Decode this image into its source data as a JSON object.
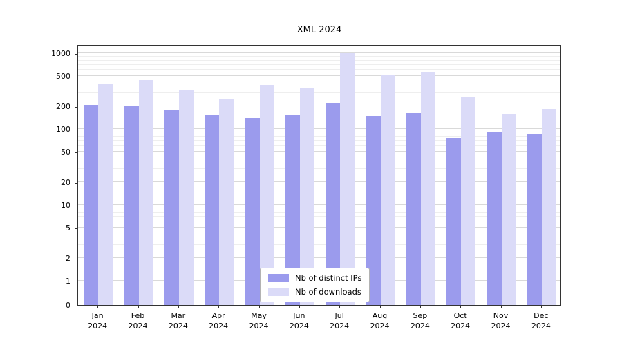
{
  "figure": {
    "title": "XML 2024"
  },
  "chart_data": {
    "type": "bar",
    "title": "XML 2024",
    "categories": [
      "Jan",
      "Feb",
      "Mar",
      "Apr",
      "May",
      "Jun",
      "Jul",
      "Aug",
      "Sep",
      "Oct",
      "Nov",
      "Dec"
    ],
    "year": "2024",
    "series": [
      {
        "name": "Nb of distinct IPs",
        "color": "#9b9bed",
        "values": [
          210,
          200,
          178,
          152,
          140,
          152,
          220,
          150,
          163,
          76,
          90,
          87
        ]
      },
      {
        "name": "Nb of downloads",
        "color": "#dbdbf8",
        "values": [
          390,
          440,
          320,
          250,
          380,
          350,
          1000,
          510,
          570,
          260,
          160,
          185
        ]
      }
    ],
    "yticks": [
      0,
      1,
      2,
      5,
      10,
      20,
      50,
      100,
      200,
      500,
      1000
    ],
    "yscale": "symlog",
    "ylim": [
      0,
      1000
    ],
    "xlabel": "",
    "ylabel": "",
    "grid": true,
    "legend_position": "lower center"
  }
}
